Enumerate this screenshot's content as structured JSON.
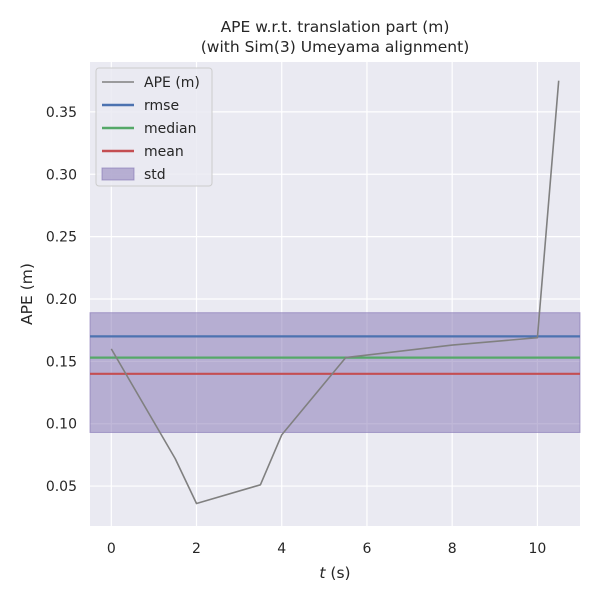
{
  "chart_data": {
    "type": "line",
    "title": "APE w.r.t. translation part (m)",
    "subtitle": "(with Sim(3) Umeyama alignment)",
    "xlabel_var": "t",
    "xlabel_unit": " (s)",
    "ylabel": "APE (m)",
    "xlim": [
      -0.5,
      11.0
    ],
    "ylim": [
      0.018,
      0.39
    ],
    "xticks": [
      0,
      2,
      4,
      6,
      8,
      10
    ],
    "yticks": [
      0.05,
      0.1,
      0.15,
      0.2,
      0.25,
      0.3,
      0.35
    ],
    "ytick_labels": [
      "0.05",
      "0.10",
      "0.15",
      "0.20",
      "0.25",
      "0.30",
      "0.35"
    ],
    "grid": true,
    "legend_position": "top-left",
    "series": [
      {
        "name": "APE (m)",
        "color": "#808080",
        "x": [
          0.0,
          1.5,
          2.0,
          3.5,
          4.0,
          5.5,
          8.0,
          10.0,
          10.5
        ],
        "y": [
          0.16,
          0.072,
          0.036,
          0.051,
          0.091,
          0.153,
          0.163,
          0.169,
          0.375
        ]
      }
    ],
    "stats": {
      "rmse": {
        "name": "rmse",
        "value": 0.17,
        "color": "#4c72b0"
      },
      "median": {
        "name": "median",
        "value": 0.153,
        "color": "#55a868"
      },
      "mean": {
        "name": "mean",
        "value": 0.14,
        "color": "#c44e52"
      },
      "std": {
        "name": "std",
        "low": 0.093,
        "high": 0.189,
        "color": "#8172b2"
      }
    },
    "colors": {
      "background": "#eaeaf2",
      "grid": "#ffffff",
      "text": "#262626"
    }
  }
}
